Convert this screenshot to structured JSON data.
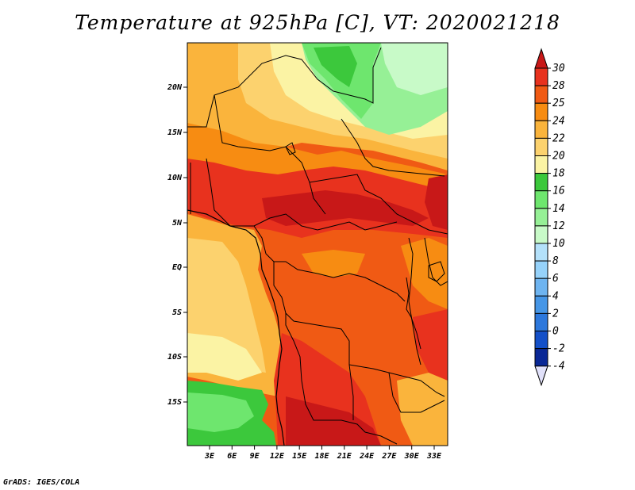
{
  "title": "Temperature at 925hPa [C], VT: 2020021218",
  "credit": "GrADS: IGES/COLA",
  "map": {
    "lon_ticks": [
      "3E",
      "6E",
      "9E",
      "12E",
      "15E",
      "18E",
      "21E",
      "24E",
      "27E",
      "30E",
      "33E"
    ],
    "lat_ticks": [
      "20N",
      "15N",
      "10N",
      "5N",
      "EQ",
      "5S",
      "10S",
      "15S"
    ]
  },
  "colorbar": {
    "levels": [
      "30",
      "28",
      "25",
      "24",
      "22",
      "20",
      "18",
      "16",
      "14",
      "12",
      "10",
      "8",
      "6",
      "4",
      "2",
      "0",
      "-2",
      "-4"
    ],
    "colors": [
      "#c81818",
      "#e8321e",
      "#f05a14",
      "#f78c12",
      "#fab43c",
      "#fcd26e",
      "#fbf3a4",
      "#3cc83c",
      "#6ee66e",
      "#96f096",
      "#c8fac8",
      "#b4e1fa",
      "#96d2fa",
      "#6eb4f0",
      "#4696e6",
      "#2d78dc",
      "#1450c8",
      "#0a2896",
      "#e1e1fa"
    ]
  },
  "colors": {
    "hot_dark": "#c81818",
    "hot": "#e8321e",
    "warm": "#f05a14",
    "mild": "#fab43c",
    "pale": "#fcd26e",
    "green": "#3cc83c"
  }
}
